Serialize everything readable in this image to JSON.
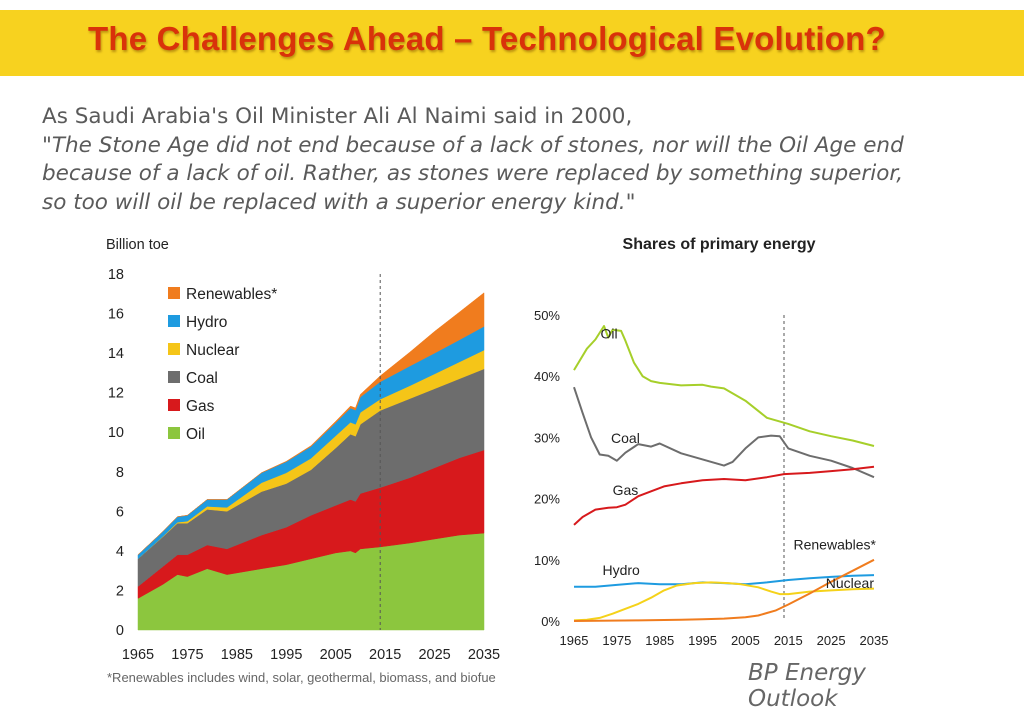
{
  "slide": {
    "title": "The Challenges Ahead – Technological Evolution?",
    "quote_lines": [
      "As Saudi Arabia's Oil Minister Ali Al Naimi said in 2000,",
      "\"The Stone Age did not end because of a lack of stones, nor will the Oil Age end",
      "because of a lack of oil. Rather, as stones were replaced by something superior,",
      "so too will oil be replaced with a superior energy kind.\""
    ],
    "footnote": "*Renewables includes wind, solar, geothermal, biomass, and biofue",
    "source_lines": [
      "BP Energy",
      "Outlook"
    ]
  },
  "colors": {
    "banner": "#f7d21f",
    "title": "#d9320a",
    "oil": "#8cc63e",
    "gas": "#d7191c",
    "coal": "#6d6d6d",
    "nuclear": "#f5c518",
    "hydro": "#1e9be0",
    "renewables": "#f07c1e",
    "oil_line": "#a6cf2a",
    "coal_line": "#6d6d6d",
    "gas_line": "#d7191c",
    "hydro_line": "#1e9be0",
    "nuclear_line": "#f5d21a",
    "renew_line": "#f07c1e"
  },
  "chart_data": [
    {
      "type": "area",
      "stacked": true,
      "title": "",
      "ylabel": "Billion toe",
      "xlabel": "",
      "xlim": [
        1965,
        2035
      ],
      "ylim": [
        0,
        18
      ],
      "yticks": [
        0,
        2,
        4,
        6,
        8,
        10,
        12,
        14,
        16,
        18
      ],
      "xticks": [
        1965,
        1975,
        1985,
        1995,
        2005,
        2015,
        2025,
        2035
      ],
      "projection_start": 2014,
      "legend": [
        "Renewables*",
        "Hydro",
        "Nuclear",
        "Coal",
        "Gas",
        "Oil"
      ],
      "x": [
        1965,
        1970,
        1973,
        1975,
        1979,
        1983,
        1990,
        1995,
        2000,
        2005,
        2008,
        2009,
        2010,
        2014,
        2020,
        2025,
        2030,
        2035
      ],
      "series": [
        {
          "name": "Oil",
          "key": "oil",
          "values": [
            1.6,
            2.3,
            2.8,
            2.7,
            3.1,
            2.8,
            3.1,
            3.3,
            3.6,
            3.9,
            4.0,
            3.9,
            4.1,
            4.2,
            4.4,
            4.6,
            4.8,
            4.9
          ]
        },
        {
          "name": "Gas",
          "key": "gas",
          "values": [
            0.6,
            0.9,
            1.0,
            1.1,
            1.2,
            1.3,
            1.7,
            1.9,
            2.2,
            2.4,
            2.6,
            2.6,
            2.8,
            3.0,
            3.3,
            3.6,
            3.9,
            4.2
          ]
        },
        {
          "name": "Coal",
          "key": "coal",
          "values": [
            1.4,
            1.5,
            1.6,
            1.6,
            1.8,
            1.9,
            2.2,
            2.2,
            2.3,
            2.9,
            3.3,
            3.3,
            3.5,
            3.9,
            4.0,
            4.0,
            4.0,
            4.1
          ]
        },
        {
          "name": "Nuclear",
          "key": "nuclear",
          "values": [
            0.0,
            0.02,
            0.05,
            0.1,
            0.15,
            0.2,
            0.45,
            0.55,
            0.58,
            0.62,
            0.6,
            0.6,
            0.6,
            0.57,
            0.65,
            0.75,
            0.85,
            0.95
          ]
        },
        {
          "name": "Hydro",
          "key": "hydro",
          "values": [
            0.2,
            0.25,
            0.28,
            0.3,
            0.35,
            0.4,
            0.5,
            0.56,
            0.6,
            0.66,
            0.72,
            0.72,
            0.78,
            0.88,
            1.0,
            1.05,
            1.12,
            1.2
          ]
        },
        {
          "name": "Renewables*",
          "key": "renewables",
          "values": [
            0.0,
            0.0,
            0.0,
            0.0,
            0.0,
            0.0,
            0.01,
            0.02,
            0.04,
            0.07,
            0.1,
            0.11,
            0.13,
            0.3,
            0.7,
            1.1,
            1.4,
            1.7
          ]
        }
      ]
    },
    {
      "type": "line",
      "title": "Shares of primary energy",
      "xlabel": "",
      "ylabel": "",
      "xlim": [
        1965,
        2035
      ],
      "ylim": [
        0,
        50
      ],
      "yticks": [
        0,
        10,
        20,
        30,
        40,
        50
      ],
      "ytick_labels": [
        "0%",
        "10%",
        "20%",
        "30%",
        "40%",
        "50%"
      ],
      "xticks": [
        1965,
        1975,
        1985,
        1995,
        2005,
        2015,
        2025,
        2035
      ],
      "projection_start": 2014,
      "series": [
        {
          "name": "Oil",
          "key": "oil_line",
          "x": [
            1965,
            1968,
            1970,
            1972,
            1973,
            1974,
            1976,
            1977,
            1979,
            1981,
            1983,
            1985,
            1990,
            1995,
            1997,
            2000,
            2005,
            2010,
            2015,
            2020,
            2025,
            2030,
            2035
          ],
          "values": [
            41.0,
            44.5,
            46.0,
            48.2,
            46.3,
            47.6,
            47.4,
            45.8,
            42.2,
            40.0,
            39.2,
            38.9,
            38.5,
            38.6,
            38.3,
            38.0,
            36.0,
            33.2,
            32.2,
            31.0,
            30.2,
            29.5,
            28.6
          ]
        },
        {
          "name": "Coal",
          "key": "coal_line",
          "x": [
            1965,
            1967,
            1969,
            1971,
            1973,
            1975,
            1977,
            1980,
            1983,
            1985,
            1990,
            1995,
            2000,
            2002,
            2005,
            2008,
            2011,
            2013,
            2015,
            2020,
            2025,
            2030,
            2035
          ],
          "values": [
            38.2,
            34.0,
            30.0,
            27.2,
            27.0,
            26.2,
            27.5,
            28.9,
            28.5,
            29.0,
            27.4,
            26.4,
            25.4,
            26.0,
            28.2,
            30.0,
            30.3,
            30.2,
            28.2,
            27.0,
            26.2,
            25.0,
            23.5
          ]
        },
        {
          "name": "Gas",
          "key": "gas_line",
          "x": [
            1965,
            1967,
            1970,
            1973,
            1975,
            1977,
            1980,
            1983,
            1986,
            1990,
            1995,
            2000,
            2005,
            2010,
            2014,
            2020,
            2025,
            2030,
            2035
          ],
          "values": [
            15.7,
            17.0,
            18.2,
            18.5,
            18.6,
            19.0,
            20.4,
            21.2,
            22.0,
            22.5,
            23.0,
            23.2,
            23.0,
            23.5,
            24.0,
            24.2,
            24.5,
            24.8,
            25.2
          ]
        },
        {
          "name": "Hydro",
          "key": "hydro_line",
          "x": [
            1965,
            1970,
            1975,
            1980,
            1985,
            1990,
            1995,
            2000,
            2005,
            2010,
            2015,
            2020,
            2025,
            2030,
            2035
          ],
          "values": [
            5.6,
            5.6,
            5.9,
            6.2,
            6.0,
            6.0,
            6.3,
            6.2,
            6.0,
            6.3,
            6.7,
            7.0,
            7.2,
            7.4,
            7.5
          ]
        },
        {
          "name": "Nuclear",
          "key": "nuclear_line",
          "x": [
            1965,
            1968,
            1971,
            1974,
            1977,
            1980,
            1983,
            1986,
            1989,
            1993,
            1997,
            2001,
            2004,
            2008,
            2011,
            2013,
            2015,
            2020,
            2025,
            2030,
            2035
          ],
          "values": [
            0.1,
            0.2,
            0.5,
            1.2,
            2.0,
            2.8,
            3.8,
            5.0,
            5.8,
            6.2,
            6.3,
            6.2,
            6.0,
            5.5,
            4.8,
            4.4,
            4.4,
            4.8,
            5.0,
            5.2,
            5.3
          ]
        },
        {
          "name": "Renewables*",
          "key": "renew_line",
          "x": [
            1965,
            1980,
            1990,
            1995,
            2000,
            2005,
            2008,
            2010,
            2012,
            2015,
            2020,
            2025,
            2030,
            2035
          ],
          "values": [
            0.0,
            0.1,
            0.2,
            0.3,
            0.4,
            0.6,
            0.9,
            1.3,
            1.7,
            2.7,
            4.5,
            6.4,
            8.2,
            10.0
          ]
        }
      ],
      "annotations": [
        "Oil",
        "Coal",
        "Gas",
        "Hydro",
        "Renewables*",
        "Nuclear"
      ]
    }
  ]
}
